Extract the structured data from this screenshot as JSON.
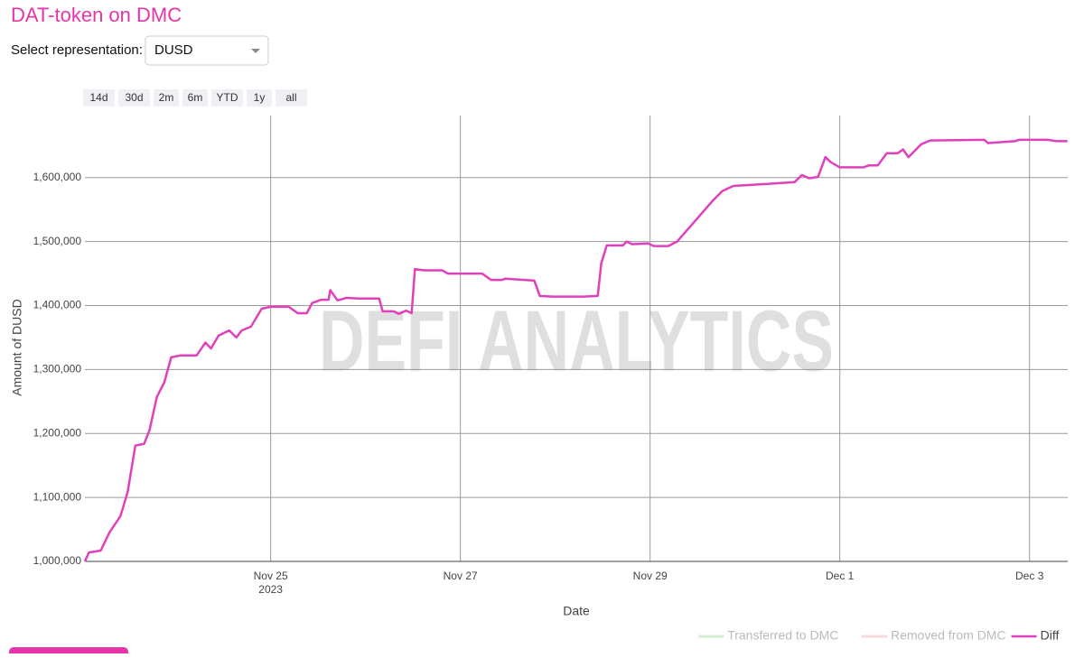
{
  "page": {
    "title": "DAT-token on DMC",
    "select_label": "Select representation:",
    "select_value": "DUSD",
    "range_buttons": [
      "14d",
      "30d",
      "2m",
      "6m",
      "YTD",
      "1y",
      "all"
    ],
    "watermark": "DEFI ANALYTICS"
  },
  "chart_data": {
    "type": "line",
    "x_label": "Date",
    "y_label": "Amount of DUSD",
    "grid": true,
    "legend": "bottom-right",
    "xlim": [
      "2023-11-23T01:00",
      "2023-12-03T09:40"
    ],
    "xticks": [
      {
        "value": "2023-11-25T00:00",
        "label": "Nov 25",
        "sublabel": "2023"
      },
      {
        "value": "2023-11-27T00:00",
        "label": "Nov 27"
      },
      {
        "value": "2023-11-29T00:00",
        "label": "Nov 29"
      },
      {
        "value": "2023-12-01T00:00",
        "label": "Dec 1"
      },
      {
        "value": "2023-12-03T00:00",
        "label": "Dec 3"
      }
    ],
    "ylim": [
      1000000,
      1697000
    ],
    "yticks": [
      {
        "value": 1000000,
        "label": "1,000,000"
      },
      {
        "value": 1100000,
        "label": "1,100,000"
      },
      {
        "value": 1200000,
        "label": "1,200,000"
      },
      {
        "value": 1300000,
        "label": "1,300,000"
      },
      {
        "value": 1400000,
        "label": "1,400,000"
      },
      {
        "value": 1500000,
        "label": "1,500,000"
      },
      {
        "value": 1600000,
        "label": "1,600,000"
      }
    ],
    "x": [
      "2023-11-23T01:00",
      "2023-11-23T02:00",
      "2023-11-23T05:00",
      "2023-11-23T07:12",
      "2023-11-23T10:00",
      "2023-11-23T11:50",
      "2023-11-23T13:45",
      "2023-11-23T16:00",
      "2023-11-23T17:20",
      "2023-11-23T19:12",
      "2023-11-23T21:05",
      "2023-11-23T22:50",
      "2023-11-24T01:10",
      "2023-11-24T05:15",
      "2023-11-24T07:30",
      "2023-11-24T08:55",
      "2023-11-24T10:50",
      "2023-11-24T13:30",
      "2023-11-24T15:20",
      "2023-11-24T16:40",
      "2023-11-24T19:00",
      "2023-11-24T21:43",
      "2023-11-25T00:00",
      "2023-11-25T04:34",
      "2023-11-25T06:51",
      "2023-11-25T09:08",
      "2023-11-25T10:30",
      "2023-11-25T12:48",
      "2023-11-25T14:40",
      "2023-11-25T15:05",
      "2023-11-25T16:55",
      "2023-11-25T19:12",
      "2023-11-25T22:24",
      "2023-11-26T03:26",
      "2023-11-26T04:20",
      "2023-11-26T07:05",
      "2023-11-26T08:25",
      "2023-11-26T10:17",
      "2023-11-26T11:40",
      "2023-11-26T12:30",
      "2023-11-26T14:51",
      "2023-11-26T19:25",
      "2023-11-26T20:48",
      "2023-11-27T05:30",
      "2023-11-27T07:46",
      "2023-11-27T10:31",
      "2023-11-27T11:26",
      "2023-11-27T18:43",
      "2023-11-27T20:06",
      "2023-11-27T23:18",
      "2023-11-28T07:05",
      "2023-11-28T10:45",
      "2023-11-28T11:39",
      "2023-11-28T13:02",
      "2023-11-28T17:08",
      "2023-11-28T18:03",
      "2023-11-28T19:26",
      "2023-11-28T23:31",
      "2023-11-29T00:55",
      "2023-11-29T04:34",
      "2023-11-29T06:51",
      "2023-11-29T16:00",
      "2023-11-29T18:17",
      "2023-11-29T21:02",
      "2023-11-30T05:43",
      "2023-11-30T12:34",
      "2023-11-30T14:24",
      "2023-11-30T16:13",
      "2023-11-30T18:30",
      "2023-11-30T20:21",
      "2023-11-30T21:43",
      "2023-12-01T00:00",
      "2023-12-01T05:57",
      "2023-12-01T07:20",
      "2023-12-01T09:36",
      "2023-12-01T11:53",
      "2023-12-01T14:38",
      "2023-12-01T16:00",
      "2023-12-01T17:22",
      "2023-12-01T20:34",
      "2023-12-01T22:51",
      "2023-12-02T12:34",
      "2023-12-02T13:29",
      "2023-12-02T20:21",
      "2023-12-02T21:16",
      "2023-12-03T04:34",
      "2023-12-03T06:51",
      "2023-12-03T09:36"
    ],
    "series": [
      {
        "name": "Transferred to DMC",
        "color": "#b7e4b5",
        "visible": "legendonly"
      },
      {
        "name": "Removed from DMC",
        "color": "#f5c2c2",
        "visible": "legendonly"
      },
      {
        "name": "Diff",
        "color": "#e040bb",
        "values": [
          1000000,
          1014000,
          1017000,
          1045000,
          1071000,
          1109000,
          1181000,
          1184000,
          1205000,
          1257000,
          1280000,
          1319000,
          1322000,
          1322000,
          1342000,
          1333000,
          1353000,
          1361000,
          1350000,
          1361000,
          1367000,
          1395000,
          1398000,
          1398000,
          1388000,
          1388000,
          1404000,
          1409000,
          1409000,
          1424000,
          1408000,
          1412000,
          1411000,
          1411000,
          1391000,
          1391000,
          1387000,
          1392000,
          1388000,
          1457000,
          1455000,
          1455000,
          1450000,
          1450000,
          1440000,
          1440000,
          1442000,
          1439000,
          1415000,
          1414000,
          1414000,
          1415000,
          1466000,
          1494000,
          1494000,
          1500000,
          1496000,
          1497000,
          1493000,
          1493000,
          1500000,
          1565000,
          1579000,
          1587000,
          1590000,
          1593000,
          1604000,
          1599000,
          1601000,
          1632000,
          1624000,
          1616000,
          1616000,
          1619000,
          1619000,
          1638000,
          1638000,
          1644000,
          1632000,
          1652000,
          1658000,
          1659000,
          1654000,
          1657000,
          1659000,
          1659000,
          1657000,
          1657000
        ]
      }
    ]
  }
}
